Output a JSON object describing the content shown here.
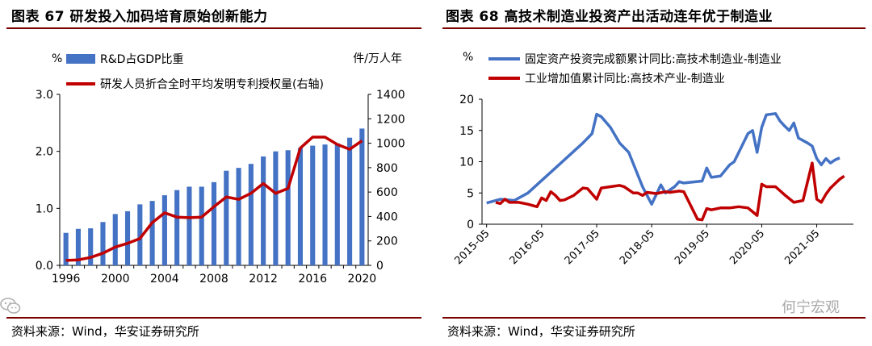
{
  "left": {
    "title": "图表 67  研发投入加码培育原始创新能力",
    "source": "资料来源：Wind，华安证券研究所"
  },
  "right": {
    "title": "图表 68  高技术制造业投资产出活动连年优于制造业",
    "source": "资料来源：Wind，华安证券研究所"
  },
  "watermark": "何宁宏观",
  "chart_data": [
    {
      "type": "bar",
      "y_left_unit": "%",
      "y_right_unit": "件/万人年",
      "y_left_ticks": [
        "0.0",
        "1.0",
        "2.0",
        "3.0"
      ],
      "y_right_ticks": [
        "0",
        "200",
        "400",
        "600",
        "800",
        "1000",
        "1200",
        "1400"
      ],
      "x_ticks": [
        "1996",
        "2000",
        "2004",
        "2008",
        "2012",
        "2016",
        "2020"
      ],
      "ylim_left": [
        0,
        3.0
      ],
      "ylim_right": [
        0,
        1400
      ],
      "x": [
        1996,
        1997,
        1998,
        1999,
        2000,
        2001,
        2002,
        2003,
        2004,
        2005,
        2006,
        2007,
        2008,
        2009,
        2010,
        2011,
        2012,
        2013,
        2014,
        2015,
        2016,
        2017,
        2018,
        2019,
        2020
      ],
      "series": [
        {
          "name": "R&D占GDP比重",
          "axis": "left",
          "kind": "bar",
          "color": "#4472c4",
          "values": [
            0.57,
            0.64,
            0.65,
            0.76,
            0.9,
            0.95,
            1.07,
            1.13,
            1.23,
            1.32,
            1.38,
            1.38,
            1.46,
            1.66,
            1.71,
            1.78,
            1.91,
            2.0,
            2.02,
            2.06,
            2.1,
            2.12,
            2.14,
            2.24,
            2.4
          ]
        },
        {
          "name": "研发人员折合全时平均发明专利授权量(右轴)",
          "axis": "right",
          "kind": "line",
          "color": "#c00000",
          "values": [
            40,
            45,
            65,
            100,
            150,
            180,
            220,
            350,
            430,
            395,
            390,
            395,
            480,
            560,
            540,
            590,
            670,
            590,
            630,
            960,
            1050,
            1050,
            990,
            950,
            1020
          ]
        }
      ],
      "legend": "top-left",
      "grid": false
    },
    {
      "type": "line",
      "y_unit": "%",
      "y_ticks": [
        "0",
        "5",
        "10",
        "15",
        "20"
      ],
      "ylim": [
        0,
        20
      ],
      "x_ticks": [
        "2015-05",
        "2016-05",
        "2017-05",
        "2018-05",
        "2019-05",
        "2020-05",
        "2021-05"
      ],
      "series": [
        {
          "name": "固定资产投资完成额累计同比:高技术制造业-制造业",
          "color": "#4472c4",
          "points": [
            [
              "2015-05",
              3.4
            ],
            [
              "2015-08",
              4.0
            ],
            [
              "2015-11",
              3.8
            ],
            [
              "2016-02",
              5.0
            ],
            [
              "2016-05",
              7.0
            ],
            [
              "2016-08",
              9.0
            ],
            [
              "2016-11",
              11.0
            ],
            [
              "2017-02",
              13.0
            ],
            [
              "2017-04",
              14.5
            ],
            [
              "2017-05",
              17.6
            ],
            [
              "2017-06",
              17.2
            ],
            [
              "2017-08",
              15.5
            ],
            [
              "2017-10",
              13.0
            ],
            [
              "2017-12",
              11.5
            ],
            [
              "2018-03",
              6.0
            ],
            [
              "2018-05",
              3.2
            ],
            [
              "2018-07",
              6.3
            ],
            [
              "2018-08",
              5.0
            ],
            [
              "2018-10",
              6.0
            ],
            [
              "2018-11",
              6.8
            ],
            [
              "2018-12",
              6.6
            ],
            [
              "2019-04",
              6.9
            ],
            [
              "2019-05",
              9.0
            ],
            [
              "2019-06",
              7.5
            ],
            [
              "2019-08",
              7.7
            ],
            [
              "2019-10",
              9.5
            ],
            [
              "2019-11",
              10.0
            ],
            [
              "2019-12",
              11.5
            ],
            [
              "2020-02",
              14.5
            ],
            [
              "2020-03",
              15.0
            ],
            [
              "2020-04",
              11.5
            ],
            [
              "2020-05",
              15.5
            ],
            [
              "2020-06",
              17.5
            ],
            [
              "2020-08",
              17.7
            ],
            [
              "2020-09",
              16.5
            ],
            [
              "2020-10",
              15.7
            ],
            [
              "2020-11",
              15.0
            ],
            [
              "2020-12",
              16.2
            ],
            [
              "2021-01",
              13.8
            ],
            [
              "2021-03",
              13.0
            ],
            [
              "2021-04",
              12.5
            ],
            [
              "2021-05",
              10.5
            ],
            [
              "2021-06",
              9.5
            ],
            [
              "2021-07",
              10.5
            ],
            [
              "2021-08",
              9.8
            ],
            [
              "2021-09",
              10.3
            ],
            [
              "2021-10",
              10.6
            ]
          ]
        },
        {
          "name": "工业增加值累计同比:高技术产业-制造业",
          "color": "#c00000",
          "points": [
            [
              "2015-07",
              3.5
            ],
            [
              "2015-08",
              3.3
            ],
            [
              "2015-09",
              4.0
            ],
            [
              "2015-10",
              3.5
            ],
            [
              "2015-12",
              3.5
            ],
            [
              "2016-02",
              3.2
            ],
            [
              "2016-04",
              2.8
            ],
            [
              "2016-05",
              4.2
            ],
            [
              "2016-06",
              3.8
            ],
            [
              "2016-07",
              5.2
            ],
            [
              "2016-08",
              4.6
            ],
            [
              "2016-09",
              3.8
            ],
            [
              "2016-10",
              3.9
            ],
            [
              "2016-12",
              4.6
            ],
            [
              "2017-02",
              5.8
            ],
            [
              "2017-03",
              5.7
            ],
            [
              "2017-05",
              4.0
            ],
            [
              "2017-06",
              5.8
            ],
            [
              "2017-08",
              6.0
            ],
            [
              "2017-10",
              6.2
            ],
            [
              "2017-11",
              6.0
            ],
            [
              "2018-01",
              5.0
            ],
            [
              "2018-02",
              5.0
            ],
            [
              "2018-03",
              4.6
            ],
            [
              "2018-04",
              5.1
            ],
            [
              "2018-06",
              4.9
            ],
            [
              "2018-08",
              5.2
            ],
            [
              "2018-09",
              5.1
            ],
            [
              "2018-11",
              5.3
            ],
            [
              "2018-12",
              5.2
            ],
            [
              "2019-03",
              0.8
            ],
            [
              "2019-04",
              0.7
            ],
            [
              "2019-05",
              2.5
            ],
            [
              "2019-06",
              2.3
            ],
            [
              "2019-08",
              2.6
            ],
            [
              "2019-10",
              2.6
            ],
            [
              "2019-12",
              2.8
            ],
            [
              "2020-02",
              2.6
            ],
            [
              "2020-03",
              2.0
            ],
            [
              "2020-04",
              1.4
            ],
            [
              "2020-05",
              6.4
            ],
            [
              "2020-06",
              6.0
            ],
            [
              "2020-08",
              6.0
            ],
            [
              "2020-10",
              4.7
            ],
            [
              "2020-12",
              3.5
            ],
            [
              "2021-02",
              3.8
            ],
            [
              "2021-03",
              6.8
            ],
            [
              "2021-04",
              9.8
            ],
            [
              "2021-05",
              4.0
            ],
            [
              "2021-06",
              3.5
            ],
            [
              "2021-07",
              4.8
            ],
            [
              "2021-08",
              5.8
            ],
            [
              "2021-09",
              6.5
            ],
            [
              "2021-10",
              7.2
            ],
            [
              "2021-11",
              7.7
            ]
          ]
        }
      ],
      "legend": "top",
      "grid": false
    }
  ]
}
